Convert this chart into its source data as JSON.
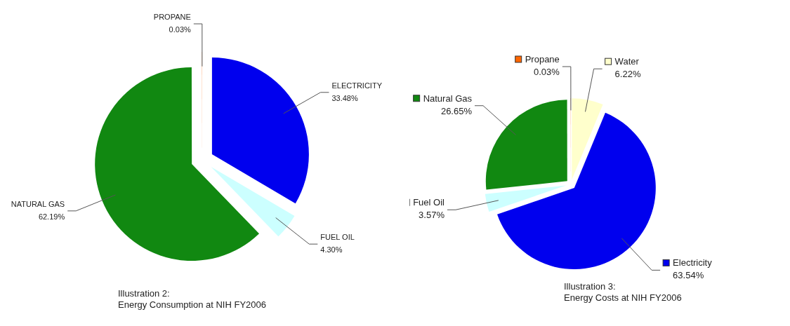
{
  "chart_data": [
    {
      "type": "pie",
      "categories": [
        "ELECTRICITY",
        "FUEL OIL",
        "NATURAL GAS",
        "PROPANE"
      ],
      "values": [
        33.48,
        4.3,
        62.19,
        0.03
      ],
      "colors": [
        "#0000ee",
        "#ccffff",
        "#118811",
        "#ff6600"
      ],
      "value_labels": [
        "33.48%",
        "4.30%",
        "62.19%",
        "0.03%"
      ],
      "annotations": [
        "Illustration 2:",
        "Energy Consumption at NIH FY2006"
      ],
      "legend": false
    },
    {
      "type": "pie",
      "categories": [
        "Water",
        "Electricity",
        "Fuel Oil",
        "Natural Gas",
        "Propane"
      ],
      "values": [
        6.22,
        63.54,
        3.57,
        26.65,
        0.03
      ],
      "colors": [
        "#ffffcc",
        "#0000ee",
        "#ccffff",
        "#118811",
        "#ff6600"
      ],
      "value_labels": [
        "6.22%",
        "63.54%",
        "3.57%",
        "26.65%",
        "0.03%"
      ],
      "annotations": [
        "Illustration 3:",
        "Energy Costs at NIH FY2006"
      ],
      "legend": "top left"
    }
  ]
}
